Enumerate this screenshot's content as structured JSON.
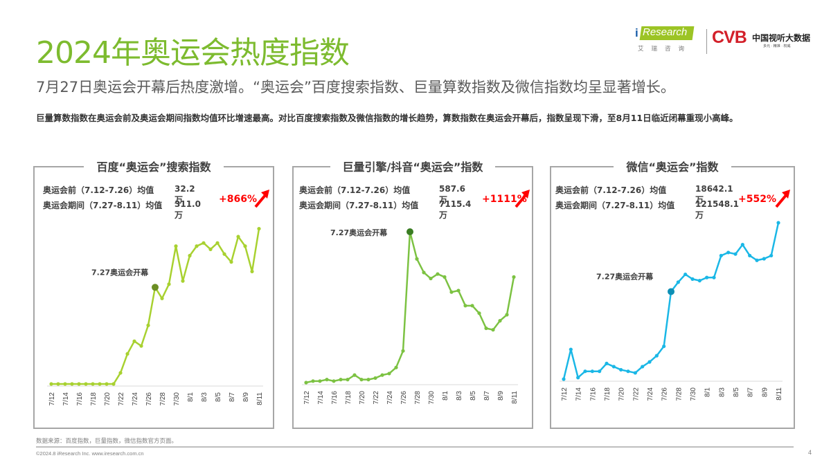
{
  "header": {
    "title": "2024年奥运会热度指数",
    "subtitle": "7月27日奥运会开幕后热度激增。“奥运会”百度搜索指数、巨量算数指数及微信指数均呈显著增长。",
    "description": "巨量算数指数在奥运会前及奥运会期间指数均值环比增速最高。对比百度搜索指数及微信指数的增长趋势，算数指数在奥运会开幕后，指数呈现下滑，至8月11日临近闭幕重现小高峰。"
  },
  "logos": {
    "iresearch_i": "i",
    "iresearch": "Research",
    "iresearch_cn": "艾瑞咨询",
    "cvb": "CVB",
    "cvb_cn": "中国视听大数据",
    "cvb_sub": "多元 · 精准 · 权威"
  },
  "colors": {
    "title_green": "#7dbb2f",
    "baidu_line": "#a8d130",
    "baidu_marker_highlight": "#6b8e23",
    "douyin_line": "#7cc242",
    "douyin_marker_highlight": "#3a7d23",
    "wechat_line": "#1ab7e6",
    "wechat_marker_highlight": "#0e8fb5",
    "growth_red": "#ff0000"
  },
  "panels": [
    {
      "title": "百度“奥运会”搜索指数",
      "pre_label": "奥运会前（7.12-7.26）均值",
      "pre_value": "32.2万",
      "during_label": "奥运会期间（7.27-8.11）均值",
      "during_value": "311.0万",
      "growth": "+866%",
      "annotation": "7.27奥运会开幕"
    },
    {
      "title": "巨量引擎/抖音“奥运会”指数",
      "pre_label": "奥运会前（7.12-7.26）均值",
      "pre_value": "587.6万",
      "during_label": "奥运会期间（7.27-8.11）均值",
      "during_value": "7115.4万",
      "growth": "+1111%",
      "annotation": "7.27奥运会开幕"
    },
    {
      "title": "微信“奥运会”指数",
      "pre_label": "奥运会前（7.12-7.26）均值",
      "pre_value": "18642.1万",
      "during_label": "奥运会期间（7.27-8.11）均值",
      "during_value": "121548.1万",
      "growth": "+552%",
      "annotation": "7.27奥运会开幕"
    }
  ],
  "chart_data": [
    {
      "type": "line",
      "title": "百度“奥运会”搜索指数",
      "xlabel": "",
      "ylabel": "",
      "y_axis_visible": false,
      "grid": false,
      "x": [
        "7/12",
        "7/13",
        "7/14",
        "7/15",
        "7/16",
        "7/17",
        "7/18",
        "7/19",
        "7/20",
        "7/21",
        "7/22",
        "7/23",
        "7/24",
        "7/25",
        "7/26",
        "7/27",
        "7/28",
        "7/29",
        "7/30",
        "7/31",
        "8/1",
        "8/2",
        "8/3",
        "8/4",
        "8/5",
        "8/6",
        "8/7",
        "8/8",
        "8/9",
        "8/10",
        "8/11"
      ],
      "tick_labels": [
        "7/12",
        "7/14",
        "7/16",
        "7/18",
        "7/20",
        "7/22",
        "7/24",
        "7/26",
        "7/28",
        "7/30",
        "8/1",
        "8/3",
        "8/5",
        "8/7",
        "8/9",
        "8/11"
      ],
      "values_relative": [
        0,
        0,
        0,
        0,
        0,
        0,
        0,
        0,
        0,
        0,
        7,
        19,
        27,
        24,
        37,
        61,
        54,
        63,
        87,
        65,
        81,
        87,
        89,
        85,
        89,
        82,
        77,
        93,
        87,
        71,
        98
      ],
      "highlight_index": 15,
      "annotation": "7.27奥运会开幕",
      "summary": {
        "pre_mean": "32.2万",
        "during_mean": "311.0万",
        "growth": "+866%"
      }
    },
    {
      "type": "line",
      "title": "巨量引擎/抖音“奥运会”指数",
      "xlabel": "",
      "ylabel": "",
      "y_axis_visible": false,
      "grid": false,
      "x": [
        "7/12",
        "7/13",
        "7/14",
        "7/15",
        "7/16",
        "7/17",
        "7/18",
        "7/19",
        "7/20",
        "7/21",
        "7/22",
        "7/23",
        "7/24",
        "7/25",
        "7/26",
        "7/27",
        "7/28",
        "7/29",
        "7/30",
        "7/31",
        "8/1",
        "8/2",
        "8/3",
        "8/4",
        "8/5",
        "8/6",
        "8/7",
        "8/8",
        "8/9",
        "8/10",
        "8/11"
      ],
      "tick_labels": [
        "7/12",
        "7/14",
        "7/16",
        "7/18",
        "7/20",
        "7/22",
        "7/24",
        "7/26",
        "7/28",
        "7/30",
        "8/1",
        "8/3",
        "8/5",
        "8/7",
        "8/9",
        "8/11"
      ],
      "values_relative": [
        0,
        1,
        1,
        2,
        1,
        2,
        2,
        5,
        2,
        2,
        3,
        5,
        6,
        10,
        21,
        100,
        82,
        73,
        69,
        72,
        70,
        60,
        61,
        51,
        51,
        46,
        36,
        35,
        41,
        45,
        70
      ],
      "highlight_index": 15,
      "annotation": "7.27奥运会开幕",
      "summary": {
        "pre_mean": "587.6万",
        "during_mean": "7115.4万",
        "growth": "+1111%"
      }
    },
    {
      "type": "line",
      "title": "微信“奥运会”指数",
      "xlabel": "",
      "ylabel": "",
      "y_axis_visible": false,
      "grid": false,
      "x": [
        "7/12",
        "7/13",
        "7/14",
        "7/15",
        "7/16",
        "7/17",
        "7/18",
        "7/19",
        "7/20",
        "7/21",
        "7/22",
        "7/23",
        "7/24",
        "7/25",
        "7/26",
        "7/27",
        "7/28",
        "7/29",
        "7/30",
        "7/31",
        "8/1",
        "8/2",
        "8/3",
        "8/4",
        "8/5",
        "8/6",
        "8/7",
        "8/8",
        "8/9",
        "8/10",
        "8/11"
      ],
      "tick_labels": [
        "7/12",
        "7/14",
        "7/16",
        "7/18",
        "7/20",
        "7/22",
        "7/24",
        "7/26",
        "7/28",
        "7/30",
        "8/1",
        "8/3",
        "8/5",
        "8/7",
        "8/9",
        "8/11"
      ],
      "values_relative": [
        0,
        19,
        1,
        5,
        5,
        5,
        10,
        8,
        6,
        5,
        4,
        8,
        11,
        15,
        21,
        56,
        62,
        67,
        64,
        63,
        65,
        65,
        79,
        81,
        80,
        86,
        79,
        76,
        77,
        79,
        100
      ],
      "highlight_index": 15,
      "annotation": "7.27奥运会开幕",
      "summary": {
        "pre_mean": "18642.1万",
        "during_mean": "121548.1万",
        "growth": "+552%"
      }
    }
  ],
  "footer": {
    "source": "数据来源：百度指数，巨量指数，微信指数官方页面。",
    "copyright": "©2024.8 iResearch Inc.  www.iresearch.com.cn",
    "page": "4"
  }
}
